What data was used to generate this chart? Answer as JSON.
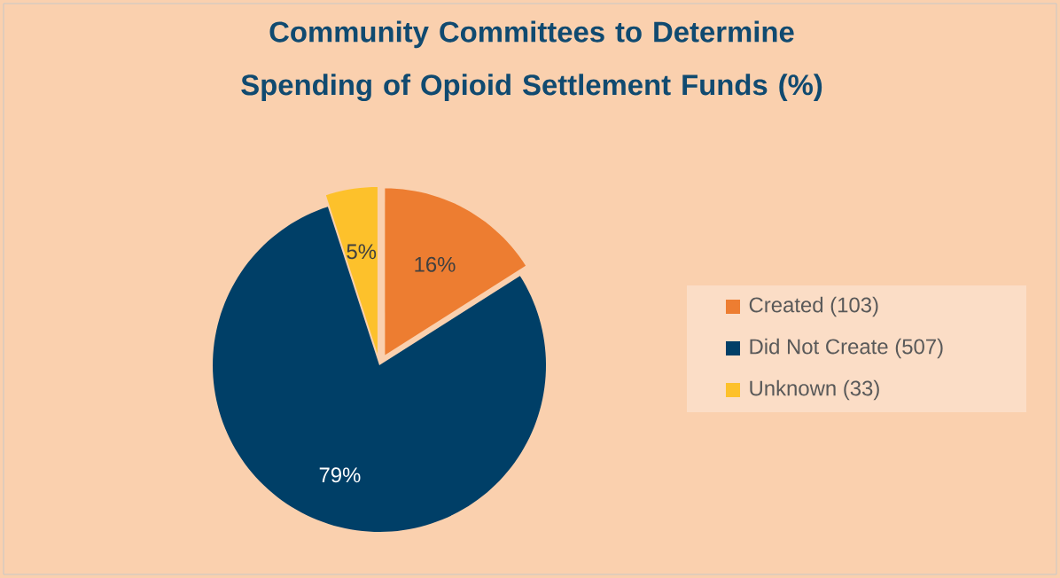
{
  "chart_data": {
    "type": "pie",
    "title": "Community Committees to Determine Spending of Opioid Settlement Funds (%)",
    "categories": [
      "Created (103)",
      "Did Not Create (507)",
      "Unknown (33)"
    ],
    "values": [
      16,
      79,
      5
    ],
    "value_labels": [
      "16%",
      "79%",
      "5%"
    ],
    "colors": [
      "#ed7d31",
      "#003f67",
      "#fdc12b"
    ],
    "legend": "right"
  }
}
